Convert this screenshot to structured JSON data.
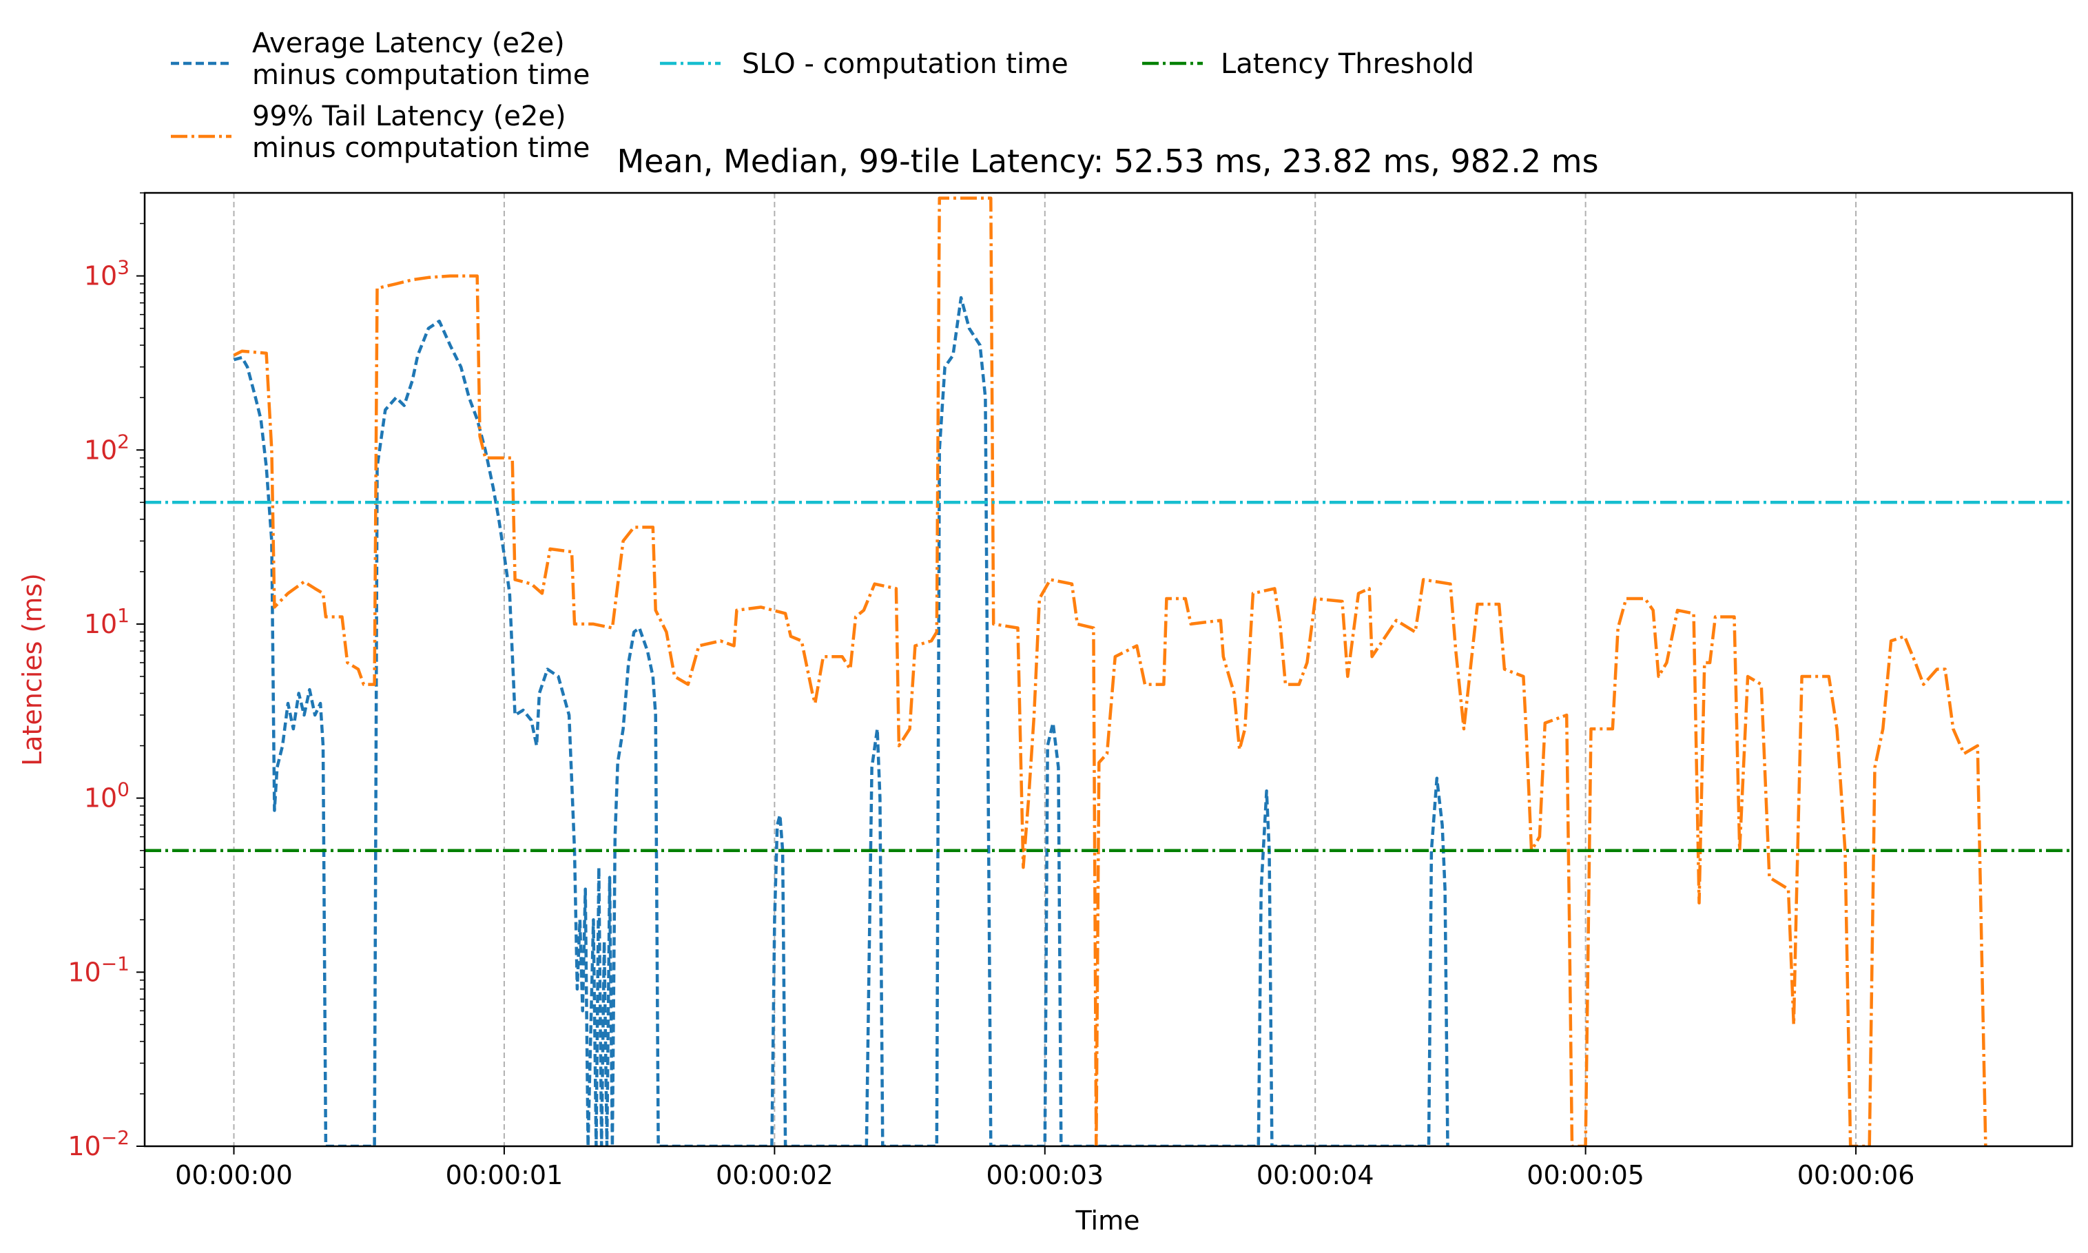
{
  "chart_data": {
    "type": "line",
    "title": "Mean, Median, 99-tile Latency: 52.53 ms, 23.82 ms, 982.2 ms",
    "xlabel": "Time",
    "ylabel": "Latencies (ms)",
    "yscale": "log",
    "ylim": [
      0.01,
      3000
    ],
    "xlim": [
      -0.33,
      6.8
    ],
    "x_ticks": [
      {
        "value": 0,
        "label": "00:00:00"
      },
      {
        "value": 1,
        "label": "00:00:01"
      },
      {
        "value": 2,
        "label": "00:00:02"
      },
      {
        "value": 3,
        "label": "00:00:03"
      },
      {
        "value": 4,
        "label": "00:00:04"
      },
      {
        "value": 5,
        "label": "00:00:05"
      },
      {
        "value": 6,
        "label": "00:00:06"
      }
    ],
    "y_ticks": [
      {
        "value": 0.01,
        "base": "10",
        "exp": "−2"
      },
      {
        "value": 0.1,
        "base": "10",
        "exp": "−1"
      },
      {
        "value": 1,
        "base": "10",
        "exp": "0"
      },
      {
        "value": 10,
        "base": "10",
        "exp": "1"
      },
      {
        "value": 100,
        "base": "10",
        "exp": "2"
      },
      {
        "value": 1000,
        "base": "10",
        "exp": "3"
      }
    ],
    "grid": "vertical at x ticks",
    "legend_position": "above plot",
    "series": [
      {
        "name": "Average Latency (e2e) minus computation time",
        "name_lines": [
          "Average Latency (e2e)",
          "minus computation time"
        ],
        "color": "#1f77b4",
        "style": "dashed",
        "points": [
          [
            0.0,
            330
          ],
          [
            0.03,
            340
          ],
          [
            0.05,
            300
          ],
          [
            0.08,
            200
          ],
          [
            0.1,
            150
          ],
          [
            0.12,
            80
          ],
          [
            0.14,
            30
          ],
          [
            0.15,
            0.85
          ],
          [
            0.16,
            1.5
          ],
          [
            0.18,
            2.0
          ],
          [
            0.2,
            3.5
          ],
          [
            0.22,
            2.5
          ],
          [
            0.24,
            4.0
          ],
          [
            0.26,
            3.0
          ],
          [
            0.28,
            4.2
          ],
          [
            0.3,
            3.0
          ],
          [
            0.32,
            3.5
          ],
          [
            0.33,
            2.0
          ],
          [
            0.34,
            0.01
          ],
          [
            0.52,
            0.01
          ],
          [
            0.53,
            80
          ],
          [
            0.56,
            170
          ],
          [
            0.6,
            200
          ],
          [
            0.63,
            180
          ],
          [
            0.66,
            250
          ],
          [
            0.68,
            350
          ],
          [
            0.72,
            500
          ],
          [
            0.76,
            550
          ],
          [
            0.8,
            400
          ],
          [
            0.84,
            300
          ],
          [
            0.87,
            200
          ],
          [
            0.9,
            150
          ],
          [
            0.93,
            100
          ],
          [
            0.96,
            60
          ],
          [
            0.98,
            40
          ],
          [
            1.0,
            25
          ],
          [
            1.02,
            15
          ],
          [
            1.04,
            3.0
          ],
          [
            1.07,
            3.2
          ],
          [
            1.1,
            2.8
          ],
          [
            1.12,
            2.0
          ],
          [
            1.13,
            4.0
          ],
          [
            1.16,
            5.5
          ],
          [
            1.2,
            5.0
          ],
          [
            1.24,
            3.0
          ],
          [
            1.26,
            0.5
          ],
          [
            1.27,
            0.08
          ],
          [
            1.28,
            0.2
          ],
          [
            1.29,
            0.06
          ],
          [
            1.3,
            0.3
          ],
          [
            1.31,
            0.01
          ],
          [
            1.33,
            0.2
          ],
          [
            1.34,
            0.01
          ],
          [
            1.35,
            0.4
          ],
          [
            1.36,
            0.01
          ],
          [
            1.37,
            0.15
          ],
          [
            1.38,
            0.01
          ],
          [
            1.39,
            0.35
          ],
          [
            1.4,
            0.01
          ],
          [
            1.41,
            0.6
          ],
          [
            1.42,
            1.6
          ],
          [
            1.44,
            2.5
          ],
          [
            1.46,
            6.0
          ],
          [
            1.48,
            9.0
          ],
          [
            1.5,
            9.5
          ],
          [
            1.53,
            7.0
          ],
          [
            1.55,
            5.0
          ],
          [
            1.56,
            3.0
          ],
          [
            1.57,
            0.01
          ],
          [
            1.99,
            0.01
          ],
          [
            2.0,
            0.2
          ],
          [
            2.01,
            0.7
          ],
          [
            2.02,
            0.8
          ],
          [
            2.03,
            0.5
          ],
          [
            2.04,
            0.01
          ],
          [
            2.34,
            0.01
          ],
          [
            2.36,
            1.5
          ],
          [
            2.38,
            2.5
          ],
          [
            2.39,
            1.0
          ],
          [
            2.4,
            0.01
          ],
          [
            2.6,
            0.01
          ],
          [
            2.61,
            100
          ],
          [
            2.63,
            300
          ],
          [
            2.66,
            350
          ],
          [
            2.69,
            750
          ],
          [
            2.72,
            500
          ],
          [
            2.76,
            400
          ],
          [
            2.78,
            200
          ],
          [
            2.8,
            0.01
          ],
          [
            3.0,
            0.01
          ],
          [
            3.01,
            2.0
          ],
          [
            3.03,
            2.7
          ],
          [
            3.05,
            1.5
          ],
          [
            3.06,
            0.01
          ],
          [
            3.79,
            0.01
          ],
          [
            3.8,
            0.3
          ],
          [
            3.82,
            1.1
          ],
          [
            3.83,
            0.5
          ],
          [
            3.84,
            0.01
          ],
          [
            4.42,
            0.01
          ],
          [
            4.43,
            0.5
          ],
          [
            4.45,
            1.3
          ],
          [
            4.47,
            0.7
          ],
          [
            4.48,
            0.3
          ],
          [
            4.49,
            0.01
          ]
        ]
      },
      {
        "name": "99% Tail Latency (e2e) minus computation time",
        "name_lines": [
          "99% Tail Latency (e2e)",
          "minus computation time"
        ],
        "color": "#ff7f0e",
        "style": "dashdot",
        "points": [
          [
            0.0,
            350
          ],
          [
            0.03,
            370
          ],
          [
            0.12,
            360
          ],
          [
            0.14,
            100
          ],
          [
            0.15,
            12.5
          ],
          [
            0.2,
            15
          ],
          [
            0.26,
            17.5
          ],
          [
            0.3,
            16
          ],
          [
            0.33,
            15
          ],
          [
            0.34,
            11
          ],
          [
            0.4,
            11
          ],
          [
            0.42,
            6.0
          ],
          [
            0.46,
            5.5
          ],
          [
            0.48,
            4.5
          ],
          [
            0.52,
            4.5
          ],
          [
            0.53,
            850
          ],
          [
            0.6,
            900
          ],
          [
            0.66,
            950
          ],
          [
            0.72,
            980
          ],
          [
            0.8,
            1000
          ],
          [
            0.85,
            1000
          ],
          [
            0.9,
            1000
          ],
          [
            0.91,
            120
          ],
          [
            0.93,
            90
          ],
          [
            1.03,
            90
          ],
          [
            1.04,
            18
          ],
          [
            1.1,
            17
          ],
          [
            1.14,
            15
          ],
          [
            1.17,
            27
          ],
          [
            1.25,
            26
          ],
          [
            1.26,
            10
          ],
          [
            1.33,
            10
          ],
          [
            1.4,
            9.5
          ],
          [
            1.44,
            30
          ],
          [
            1.48,
            36
          ],
          [
            1.55,
            36
          ],
          [
            1.56,
            12
          ],
          [
            1.6,
            9
          ],
          [
            1.63,
            5
          ],
          [
            1.68,
            4.5
          ],
          [
            1.72,
            7.5
          ],
          [
            1.8,
            8
          ],
          [
            1.85,
            7.5
          ],
          [
            1.86,
            12
          ],
          [
            1.95,
            12.5
          ],
          [
            2.04,
            11.5
          ],
          [
            2.06,
            8.5
          ],
          [
            2.1,
            8
          ],
          [
            2.14,
            4
          ],
          [
            2.15,
            3.5
          ],
          [
            2.18,
            6.5
          ],
          [
            2.25,
            6.5
          ],
          [
            2.28,
            5.5
          ],
          [
            2.3,
            11
          ],
          [
            2.33,
            12
          ],
          [
            2.37,
            17
          ],
          [
            2.45,
            16
          ],
          [
            2.46,
            2.0
          ],
          [
            2.5,
            2.5
          ],
          [
            2.52,
            7.5
          ],
          [
            2.58,
            8
          ],
          [
            2.6,
            9
          ],
          [
            2.61,
            2800
          ],
          [
            2.8,
            2800
          ],
          [
            2.81,
            10
          ],
          [
            2.9,
            9.5
          ],
          [
            2.92,
            0.4
          ],
          [
            2.94,
            1.0
          ],
          [
            2.96,
            3.0
          ],
          [
            2.98,
            14
          ],
          [
            3.02,
            18
          ],
          [
            3.1,
            17
          ],
          [
            3.12,
            10
          ],
          [
            3.18,
            9.5
          ],
          [
            3.19,
            0.01
          ],
          [
            3.2,
            1.6
          ],
          [
            3.23,
            1.8
          ],
          [
            3.26,
            6.5
          ],
          [
            3.34,
            7.5
          ],
          [
            3.37,
            4.5
          ],
          [
            3.44,
            4.5
          ],
          [
            3.45,
            14
          ],
          [
            3.52,
            14
          ],
          [
            3.54,
            10
          ],
          [
            3.65,
            10.5
          ],
          [
            3.66,
            6.5
          ],
          [
            3.7,
            4.0
          ],
          [
            3.72,
            1.9
          ],
          [
            3.74,
            2.5
          ],
          [
            3.77,
            15
          ],
          [
            3.85,
            16
          ],
          [
            3.87,
            10
          ],
          [
            3.89,
            4.5
          ],
          [
            3.94,
            4.5
          ],
          [
            3.97,
            6.0
          ],
          [
            4.0,
            14
          ],
          [
            4.1,
            13.5
          ],
          [
            4.12,
            5.0
          ],
          [
            4.16,
            15
          ],
          [
            4.2,
            16
          ],
          [
            4.21,
            6.5
          ],
          [
            4.3,
            10.5
          ],
          [
            4.37,
            9
          ],
          [
            4.4,
            18
          ],
          [
            4.5,
            17
          ],
          [
            4.52,
            7
          ],
          [
            4.55,
            2.5
          ],
          [
            4.6,
            13
          ],
          [
            4.68,
            13
          ],
          [
            4.7,
            5.5
          ],
          [
            4.77,
            5
          ],
          [
            4.78,
            2.5
          ],
          [
            4.8,
            0.5
          ],
          [
            4.83,
            0.6
          ],
          [
            4.85,
            2.7
          ],
          [
            4.93,
            3.0
          ],
          [
            4.94,
            0.2
          ],
          [
            4.95,
            0.01
          ],
          [
            5.0,
            0.01
          ],
          [
            5.02,
            2.5
          ],
          [
            5.1,
            2.5
          ],
          [
            5.12,
            9.5
          ],
          [
            5.15,
            14
          ],
          [
            5.22,
            14
          ],
          [
            5.25,
            12
          ],
          [
            5.27,
            5
          ],
          [
            5.3,
            6
          ],
          [
            5.34,
            12
          ],
          [
            5.4,
            11.5
          ],
          [
            5.42,
            0.25
          ],
          [
            5.44,
            6.0
          ],
          [
            5.46,
            6.0
          ],
          [
            5.48,
            11
          ],
          [
            5.55,
            11
          ],
          [
            5.57,
            0.5
          ],
          [
            5.6,
            5.0
          ],
          [
            5.65,
            4.5
          ],
          [
            5.68,
            0.35
          ],
          [
            5.75,
            0.3
          ],
          [
            5.77,
            0.05
          ],
          [
            5.78,
            0.25
          ],
          [
            5.8,
            5.0
          ],
          [
            5.9,
            5.0
          ],
          [
            5.93,
            2.5
          ],
          [
            5.96,
            0.5
          ],
          [
            5.98,
            0.01
          ],
          [
            6.05,
            0.01
          ],
          [
            6.07,
            1.5
          ],
          [
            6.1,
            2.5
          ],
          [
            6.13,
            8
          ],
          [
            6.18,
            8.5
          ],
          [
            6.22,
            6
          ],
          [
            6.25,
            4.5
          ],
          [
            6.3,
            5.5
          ],
          [
            6.33,
            5.5
          ],
          [
            6.36,
            2.5
          ],
          [
            6.4,
            1.8
          ],
          [
            6.45,
            2.0
          ],
          [
            6.48,
            0.01
          ]
        ]
      },
      {
        "name": "SLO - computation time",
        "color": "#17becf",
        "style": "dashdot",
        "constant": 50
      },
      {
        "name": "Latency Threshold",
        "color": "#008000",
        "style": "dashdot",
        "constant": 0.5
      }
    ]
  }
}
